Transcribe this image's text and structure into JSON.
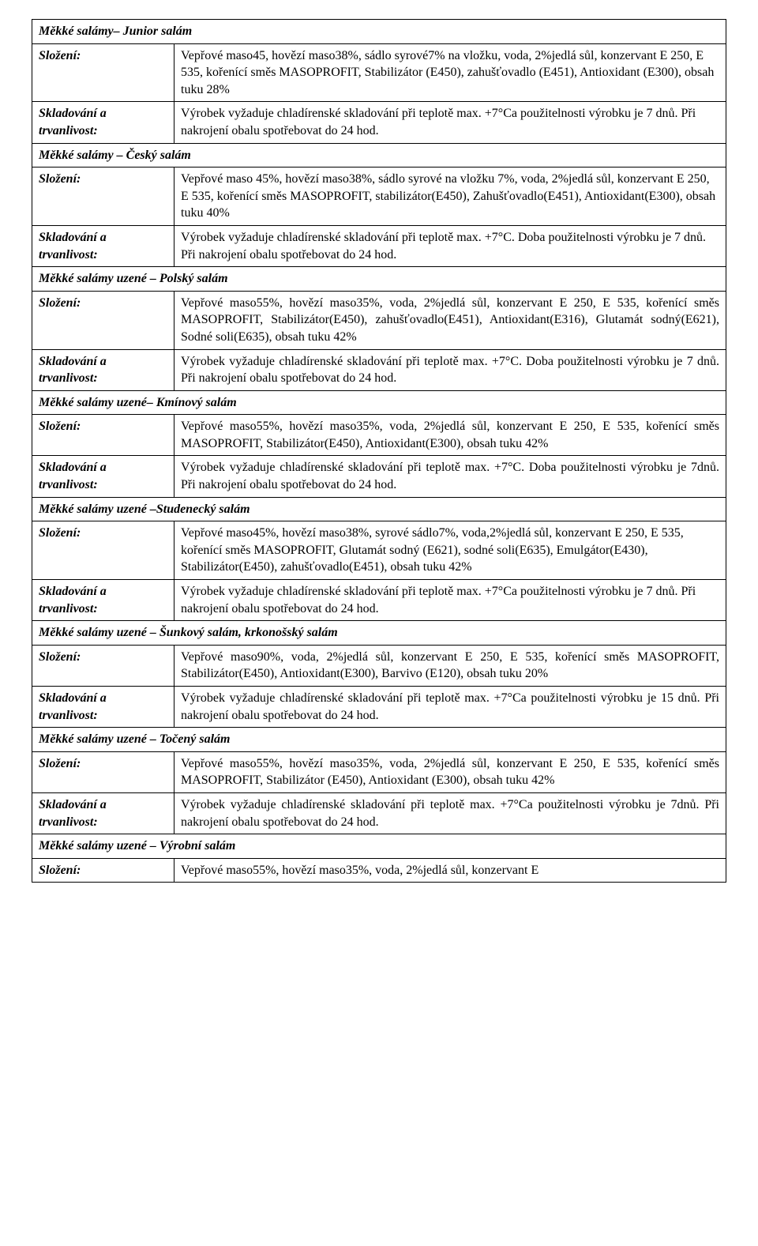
{
  "labels": {
    "composition": "Složení:",
    "storage": "Skladování a trvanlivost:"
  },
  "sections": [
    {
      "header": "Měkké salámy– Junior salám",
      "composition": "Vepřové maso45, hovězí maso38%, sádlo syrové7% na vložku, voda, 2%jedlá sůl, konzervant E 250, E 535, kořenící směs MASOPROFIT, Stabilizátor (E450), zahušťovadlo (E451), Antioxidant (E300), obsah tuku 28%",
      "storage": "Výrobek vyžaduje chladírenské skladování při teplotě max. +7°Ca použitelnosti výrobku je  7  dnů. Při nakrojení obalu spotřebovat do 24 hod.",
      "justify": false
    },
    {
      "header": "Měkké salámy – Český salám",
      "composition": "Vepřové maso 45%, hovězí maso38%, sádlo syrové na vložku 7%, voda, 2%jedlá sůl, konzervant E 250, E 535, kořenící směs MASOPROFIT, stabilizátor(E450), Zahušťovadlo(E451), Antioxidant(E300), obsah tuku 40%",
      "storage": "Výrobek vyžaduje chladírenské skladování při teplotě max. +7°C. Doba použitelnosti výrobku je  7  dnů. Při nakrojení obalu spotřebovat do 24 hod.",
      "justify": false
    },
    {
      "header": "Měkké salámy uzené – Polský salám",
      "composition": "Vepřové maso55%, hovězí maso35%, voda, 2%jedlá sůl, konzervant E 250, E 535, kořenící směs MASOPROFIT, Stabilizátor(E450), zahušťovadlo(E451), Antioxidant(E316), Glutamát sodný(E621), Sodné soli(E635), obsah tuku 42%",
      "storage": "Výrobek vyžaduje chladírenské skladování při teplotě max. +7°C. Doba použitelnosti výrobku je  7 dnů. Při nakrojení obalu spotřebovat do 24 hod.",
      "justify": true
    },
    {
      "header": "Měkké salámy uzené– Kmínový salám",
      "composition": "Vepřové maso55%, hovězí maso35%, voda, 2%jedlá sůl, konzervant E 250, E 535, kořenící směs MASOPROFIT, Stabilizátor(E450), Antioxidant(E300), obsah tuku 42%",
      "storage": "Výrobek vyžaduje chladírenské skladování při teplotě max. +7°C. Doba použitelnosti výrobku je 7dnů. Při nakrojení obalu spotřebovat do 24 hod.",
      "justify": true
    },
    {
      "header": "Měkké salámy uzené –Studenecký salám",
      "composition": "Vepřové maso45%, hovězí maso38%, syrové sádlo7%, voda,2%jedlá sůl, konzervant E 250, E 535, kořenící směs MASOPROFIT, Glutamát sodný (E621), sodné soli(E635), Emulgátor(E430), Stabilizátor(E450), zahušťovadlo(E451), obsah tuku 42%",
      "storage": "Výrobek vyžaduje chladírenské skladování při teplotě max. +7°Ca použitelnosti výrobku je  7  dnů. Při nakrojení obalu spotřebovat do 24 hod.",
      "justify": false
    },
    {
      "header": "Měkké salámy uzené – Šunkový salám, krkonošský salám",
      "composition": "Vepřové maso90%, voda, 2%jedlá sůl, konzervant E 250, E 535, kořenící směs MASOPROFIT, Stabilizátor(E450), Antioxidant(E300), Barvivo (E120), obsah tuku 20%",
      "storage": "Výrobek vyžaduje chladírenské skladování při teplotě max. +7°Ca použitelnosti výrobku je   15   dnů. Při nakrojení obalu spotřebovat do 24 hod.",
      "justify": true
    },
    {
      "header": "Měkké salámy uzené – Točený salám",
      "composition": "Vepřové maso55%, hovězí maso35%, voda, 2%jedlá sůl, konzervant E 250, E 535, kořenící směs MASOPROFIT, Stabilizátor (E450), Antioxidant (E300), obsah tuku 42%",
      "storage": "Výrobek vyžaduje chladírenské skladování při teplotě max. +7°Ca použitelnosti výrobku je 7dnů. Při nakrojení obalu spotřebovat do 24 hod.",
      "justify": true
    },
    {
      "header": "Měkké salámy uzené – Výrobní salám",
      "composition": "Vepřové maso55%, hovězí maso35%, voda, 2%jedlá sůl, konzervant E",
      "storage": null,
      "justify": false
    }
  ]
}
